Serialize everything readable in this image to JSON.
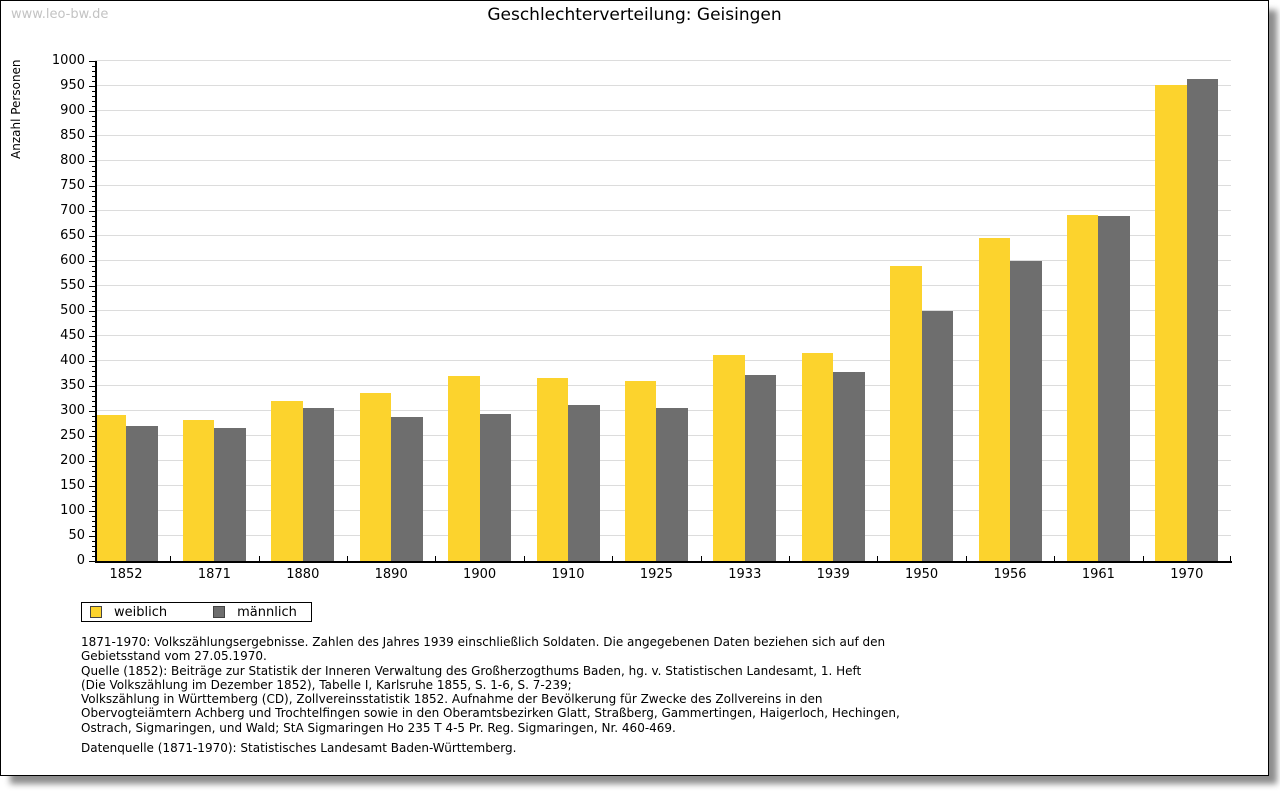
{
  "watermark": "www.leo-bw.de",
  "title": "Geschlechterverteilung: Geisingen",
  "chart_data": {
    "type": "bar",
    "title": "Geschlechterverteilung: Geisingen",
    "xlabel": "",
    "ylabel": "Anzahl Personen",
    "ylim": [
      0,
      1000
    ],
    "ytick_step": 50,
    "yminor_step": 10,
    "grid": true,
    "legend_position": "bottom-left",
    "categories": [
      "1852",
      "1871",
      "1880",
      "1890",
      "1900",
      "1910",
      "1925",
      "1933",
      "1939",
      "1950",
      "1956",
      "1961",
      "1970"
    ],
    "series": [
      {
        "name": "weiblich",
        "color": "#FCD32D",
        "values": [
          292,
          283,
          321,
          336,
          371,
          367,
          360,
          413,
          417,
          590,
          647,
          693,
          953
        ]
      },
      {
        "name": "männlich",
        "color": "#6E6E6E",
        "values": [
          270,
          267,
          307,
          289,
          294,
          312,
          306,
          373,
          379,
          500,
          601,
          690,
          965
        ]
      }
    ]
  },
  "footnotes": {
    "lines": [
      "1871-1970: Volkszählungsergebnisse. Zahlen des Jahres 1939 einschließlich Soldaten. Die angegebenen Daten beziehen sich auf den",
      "Gebietsstand vom 27.05.1970.",
      "Quelle (1852): Beiträge zur Statistik der Inneren Verwaltung des Großherzogthums Baden, hg. v. Statistischen Landesamt, 1. Heft",
      "(Die Volkszählung im Dezember 1852), Tabelle I, Karlsruhe 1855, S. 1-6, S. 7-239;",
      "Volkszählung in Württemberg (CD), Zollvereinsstatistik 1852. Aufnahme der Bevölkerung für Zwecke des Zollvereins in den",
      "Obervogteiämtern Achberg und Trochtelfingen sowie in den Oberamtsbezirken Glatt, Straßberg, Gammertingen, Haigerloch, Hechingen,",
      "Ostrach, Sigmaringen, und Wald; StA Sigmaringen Ho 235 T 4-5 Pr. Reg. Sigmaringen, Nr. 460-469."
    ],
    "datasource": "Datenquelle (1871-1970): Statistisches Landesamt Baden-Württemberg."
  }
}
